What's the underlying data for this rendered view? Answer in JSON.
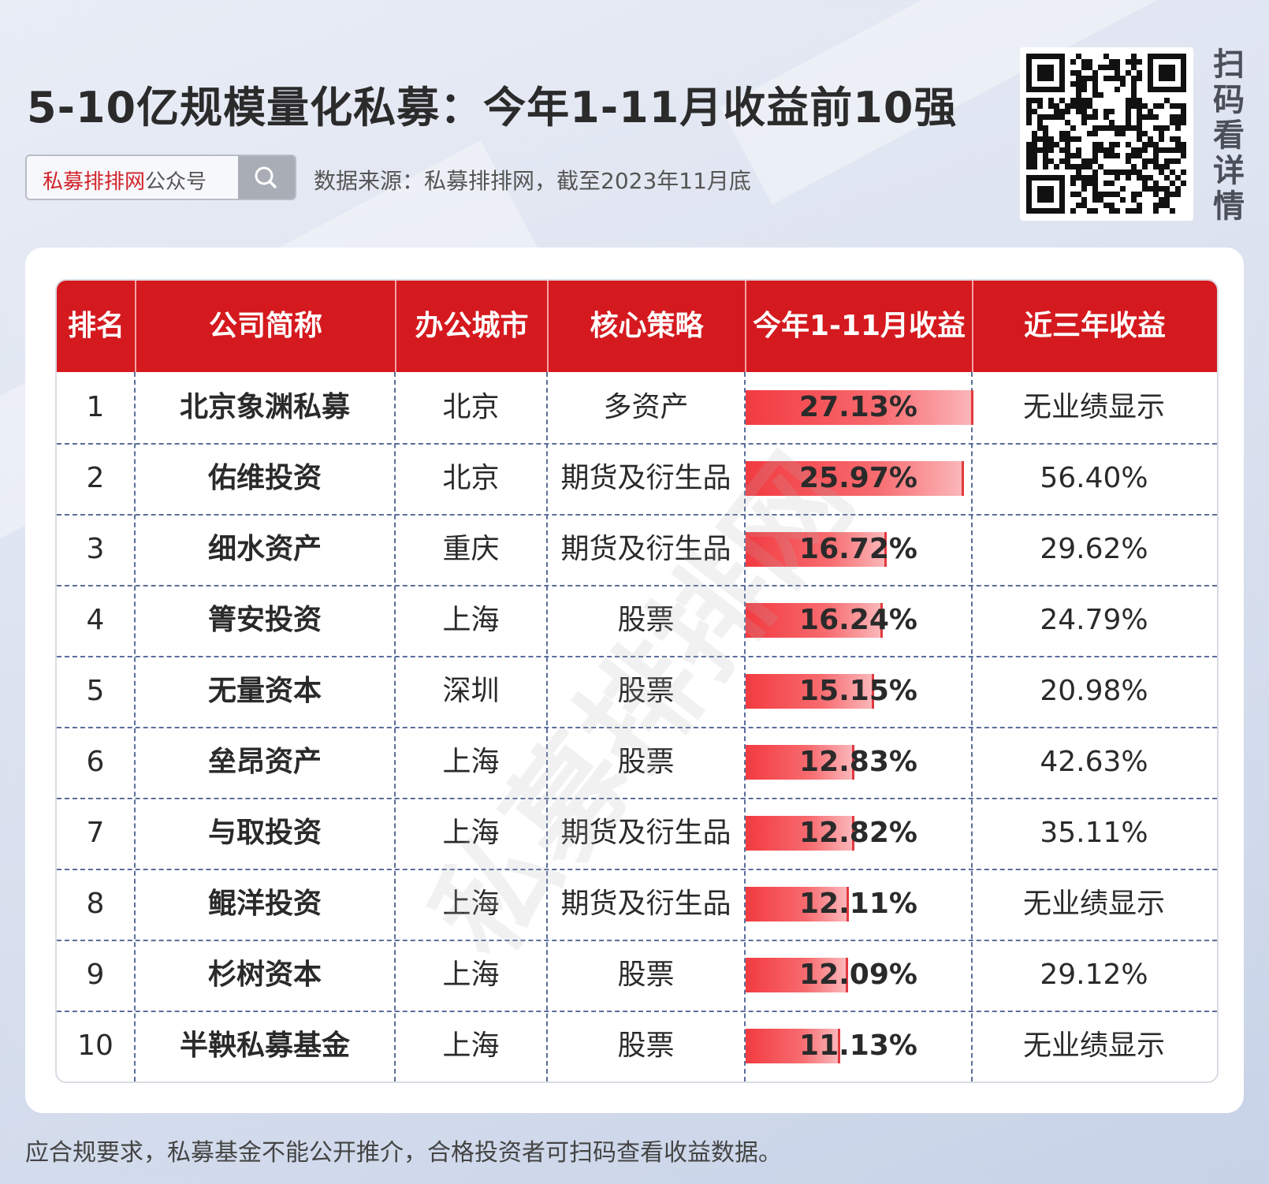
{
  "title": "5-10亿规模量化私募：今年1-11月收益前10强",
  "search": {
    "brand_red": "私募排排网",
    "brand_gray": "公众号"
  },
  "source": "数据来源：私募排排网，截至2023年11月底",
  "scan_text": "扫码看详情",
  "watermark": "私募排排网",
  "table": {
    "headers": [
      "排名",
      "公司简称",
      "办公城市",
      "核心策略",
      "今年1-11月收益",
      "近三年收益"
    ],
    "rows": [
      {
        "rank": "1",
        "company": "北京象渊私募",
        "city": "北京",
        "strategy": "多资产",
        "ytd": "27.13%",
        "three_year": "无业绩显示"
      },
      {
        "rank": "2",
        "company": "佑维投资",
        "city": "北京",
        "strategy": "期货及衍生品",
        "ytd": "25.97%",
        "three_year": "56.40%"
      },
      {
        "rank": "3",
        "company": "细水资产",
        "city": "重庆",
        "strategy": "期货及衍生品",
        "ytd": "16.72%",
        "three_year": "29.62%"
      },
      {
        "rank": "4",
        "company": "箐安投资",
        "city": "上海",
        "strategy": "股票",
        "ytd": "16.24%",
        "three_year": "24.79%"
      },
      {
        "rank": "5",
        "company": "无量资本",
        "city": "深圳",
        "strategy": "股票",
        "ytd": "15.15%",
        "three_year": "20.98%"
      },
      {
        "rank": "6",
        "company": "垒昂资产",
        "city": "上海",
        "strategy": "股票",
        "ytd": "12.83%",
        "three_year": "42.63%"
      },
      {
        "rank": "7",
        "company": "与取投资",
        "city": "上海",
        "strategy": "期货及衍生品",
        "ytd": "12.82%",
        "three_year": "35.11%"
      },
      {
        "rank": "8",
        "company": "鲲洋投资",
        "city": "上海",
        "strategy": "期货及衍生品",
        "ytd": "12.11%",
        "three_year": "无业绩显示"
      },
      {
        "rank": "9",
        "company": "杉树资本",
        "city": "上海",
        "strategy": "股票",
        "ytd": "12.09%",
        "three_year": "29.12%"
      },
      {
        "rank": "10",
        "company": "半鞅私募基金",
        "city": "上海",
        "strategy": "股票",
        "ytd": "11.13%",
        "three_year": "无业绩显示"
      }
    ]
  },
  "footer": "应合规要求，私募基金不能公开推介，合格投资者可扫码查看收益数据。",
  "colors": {
    "header_red": "#d51a1f",
    "bar_red": "#f23b41",
    "brand_red": "#d2232a"
  },
  "icons": {
    "search": "search-icon",
    "qr": "qr-code-icon"
  }
}
